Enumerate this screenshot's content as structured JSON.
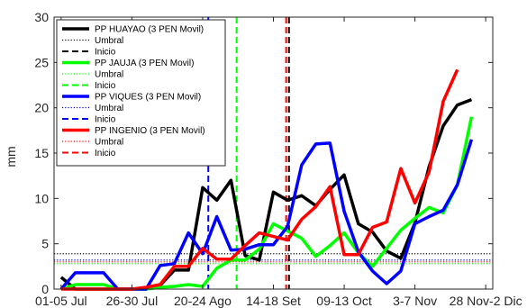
{
  "chart_data": {
    "type": "line",
    "title": "",
    "xlabel": "",
    "ylabel": "mm",
    "ylim": [
      0,
      30
    ],
    "yticks": [
      0,
      5,
      10,
      15,
      20,
      25,
      30
    ],
    "xlim": [
      0,
      28
    ],
    "xticks": [
      {
        "pos": 1,
        "label": "01-05 Jul"
      },
      {
        "pos": 6,
        "label": "26-30 Jul"
      },
      {
        "pos": 11,
        "label": "20-24 Ago"
      },
      {
        "pos": 16,
        "label": "14-18 Set"
      },
      {
        "pos": 21,
        "label": "09-13 Oct"
      },
      {
        "pos": 26,
        "label": "3-7 Nov"
      },
      {
        "pos": 31,
        "label": "28 Nov-2 Dic"
      }
    ],
    "grid": false,
    "legend_position": "top-left",
    "series": [
      {
        "name": "PP HUAYAO (3 PEN Movil)",
        "color": "#000000",
        "x": [
          1,
          2,
          3,
          4,
          5,
          6,
          7,
          8,
          9,
          10,
          11,
          12,
          13,
          14,
          15,
          16,
          17,
          18,
          19,
          20,
          21,
          22,
          23,
          24,
          25,
          26,
          27,
          28,
          29,
          30,
          31
        ],
        "values": [
          1.3,
          0,
          0,
          0,
          0,
          0,
          0,
          0.4,
          2.1,
          2.1,
          11.2,
          9.8,
          12.0,
          3.7,
          3.2,
          10.7,
          9.8,
          10.3,
          9.2,
          11.0,
          12.6,
          7.2,
          6.3,
          4.2,
          3.4,
          7.3,
          13.5,
          18.0,
          20.3,
          20.9,
          null
        ]
      },
      {
        "name": "Umbral",
        "color": "#000000",
        "style": "dotted",
        "constant": 3.9
      },
      {
        "name": "Inicio",
        "color": "#000000",
        "style": "dashed",
        "vertical_x": 17.1
      },
      {
        "name": "PP JAUJA (3 PEN Movil)",
        "color": "#00ff00",
        "x": [
          1,
          2,
          3,
          4,
          5,
          6,
          7,
          8,
          9,
          10,
          11,
          12,
          13,
          14,
          15,
          16,
          17,
          18,
          19,
          20,
          21,
          22,
          23,
          24,
          25,
          26,
          27,
          28,
          29,
          30,
          31
        ],
        "values": [
          0,
          0.5,
          0.5,
          0.5,
          0,
          0,
          0,
          0.2,
          0.3,
          0.5,
          0.3,
          2.3,
          3.2,
          3.2,
          4.4,
          7.2,
          6.4,
          5.6,
          3.6,
          4.8,
          6.2,
          4.0,
          2.5,
          4.5,
          6.5,
          7.8,
          9.0,
          8.4,
          11.5,
          19.0,
          null
        ]
      },
      {
        "name": "Umbral",
        "color": "#00ff00",
        "style": "dotted",
        "constant": 2.8
      },
      {
        "name": "Inicio",
        "color": "#00ff00",
        "style": "dashed",
        "vertical_x": 13.4
      },
      {
        "name": "PP VIQUES (3 PEN Movil)",
        "color": "#0000ff",
        "x": [
          1,
          2,
          3,
          4,
          5,
          6,
          7,
          8,
          9,
          10,
          11,
          12,
          13,
          14,
          15,
          16,
          17,
          18,
          19,
          20,
          21,
          22,
          23,
          24,
          25,
          26,
          27,
          28,
          29,
          30,
          31
        ],
        "values": [
          0,
          1.8,
          1.8,
          1.8,
          0,
          0,
          0,
          2.6,
          2.8,
          6.2,
          3.9,
          8.0,
          4.3,
          4.4,
          4.9,
          4.9,
          6.9,
          13.7,
          16.0,
          16.1,
          8.6,
          4.1,
          2.0,
          0.6,
          2.0,
          7.2,
          8.0,
          8.7,
          11.5,
          16.5,
          null
        ]
      },
      {
        "name": "Umbral",
        "color": "#0000ff",
        "style": "dotted",
        "constant": 3.2
      },
      {
        "name": "Inicio",
        "color": "#0000ff",
        "style": "dashed",
        "vertical_x": 11.4
      },
      {
        "name": "PP INGENIO (3 PEN Movil)",
        "color": "#ff0000",
        "x": [
          1,
          2,
          3,
          4,
          5,
          6,
          7,
          8,
          9,
          10,
          11,
          12,
          13,
          14,
          15,
          16,
          17,
          18,
          19,
          20,
          21,
          22,
          23,
          24,
          25,
          26,
          27,
          28,
          29,
          30,
          31
        ],
        "values": [
          0,
          0,
          0,
          0,
          0,
          0,
          0.2,
          0.5,
          2.5,
          2.5,
          4.5,
          3.3,
          3.3,
          4.8,
          6.2,
          5.8,
          5.4,
          7.7,
          9.1,
          11.3,
          3.8,
          3.8,
          6.8,
          7.4,
          13.3,
          9.5,
          12.9,
          20.7,
          24.2,
          null,
          null
        ]
      },
      {
        "name": "Umbral",
        "color": "#ff0000",
        "style": "dotted",
        "constant": 3.0
      },
      {
        "name": "Inicio",
        "color": "#ff0000",
        "style": "dashed",
        "vertical_x": 16.9
      }
    ]
  }
}
